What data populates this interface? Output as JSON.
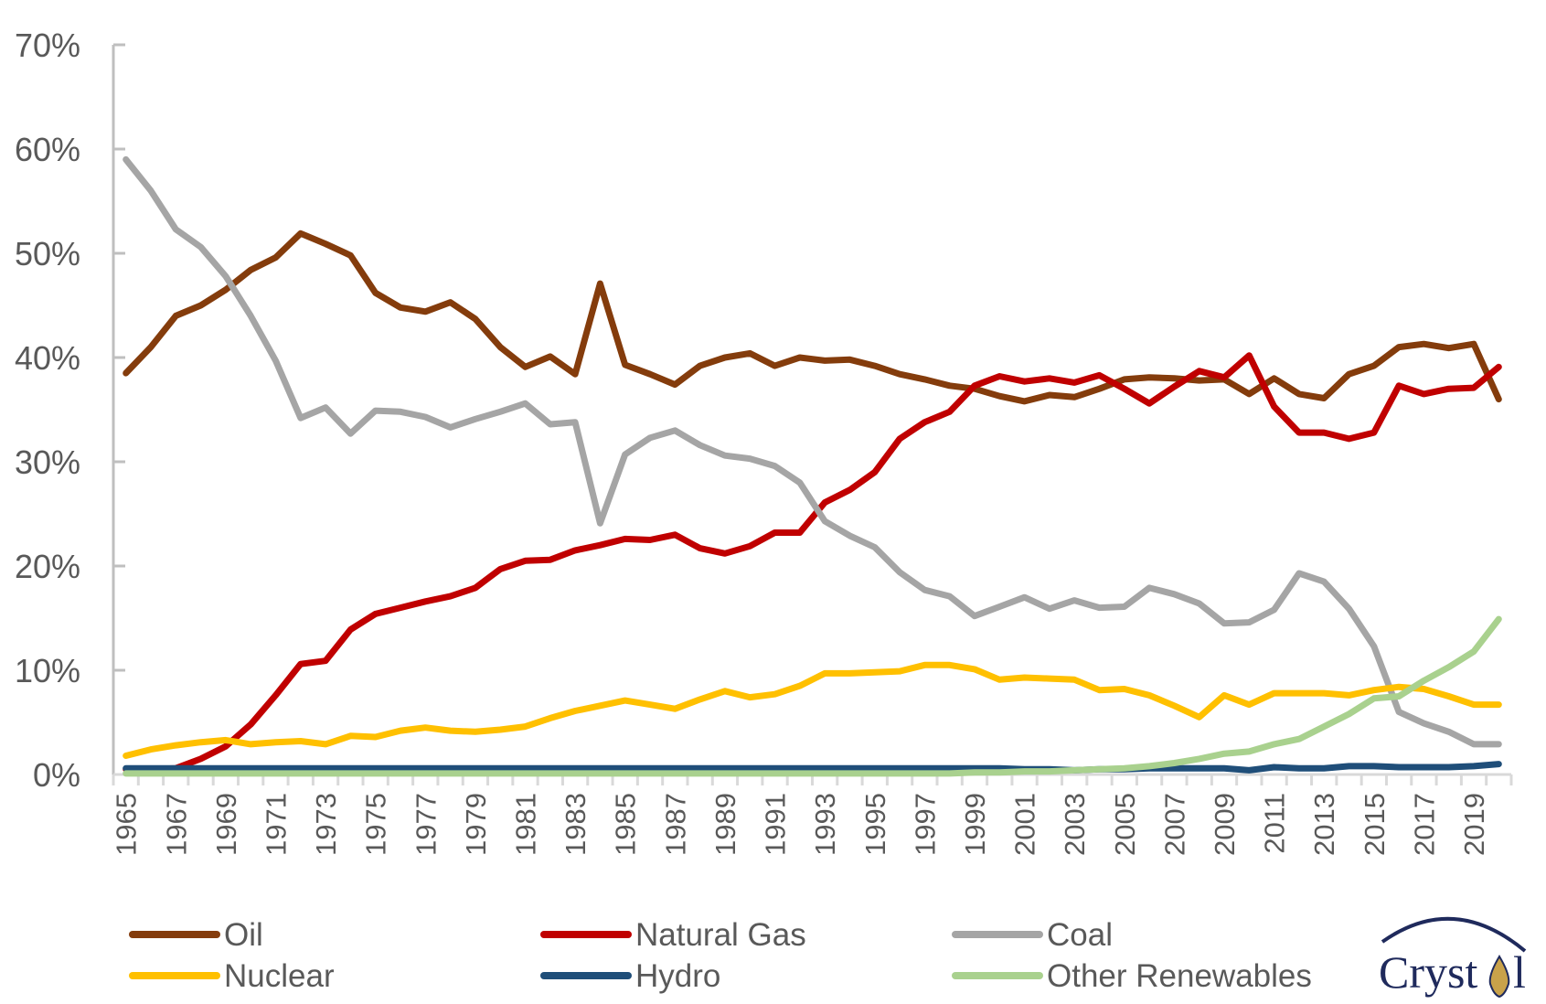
{
  "chart_data": {
    "type": "line",
    "title": "",
    "xlabel": "",
    "ylabel": "",
    "ylim": [
      0,
      70
    ],
    "yticks": [
      "0%",
      "10%",
      "20%",
      "30%",
      "40%",
      "50%",
      "60%",
      "70%"
    ],
    "ytick_values": [
      0,
      10,
      20,
      30,
      40,
      50,
      60,
      70
    ],
    "grid": false,
    "legend_position": "bottom",
    "x": [
      1965,
      1966,
      1967,
      1968,
      1969,
      1970,
      1971,
      1972,
      1973,
      1974,
      1975,
      1976,
      1977,
      1978,
      1979,
      1980,
      1981,
      1982,
      1983,
      1984,
      1985,
      1986,
      1987,
      1988,
      1989,
      1990,
      1991,
      1992,
      1993,
      1994,
      1995,
      1996,
      1997,
      1998,
      1999,
      2000,
      2001,
      2002,
      2003,
      2004,
      2005,
      2006,
      2007,
      2008,
      2009,
      2010,
      2011,
      2012,
      2013,
      2014,
      2015,
      2016,
      2017,
      2018,
      2019,
      2020
    ],
    "xtick_labels": [
      "1965",
      "1967",
      "1969",
      "1971",
      "1973",
      "1975",
      "1977",
      "1979",
      "1981",
      "1983",
      "1985",
      "1987",
      "1989",
      "1991",
      "1993",
      "1995",
      "1997",
      "1999",
      "2001",
      "2003",
      "2005",
      "2007",
      "2009",
      "2011",
      "2013",
      "2015",
      "2017",
      "2019"
    ],
    "series": [
      {
        "name": "Oil",
        "color": "#843c0c",
        "values": [
          38.5,
          41,
          44,
          45,
          46.5,
          48.4,
          49.6,
          51.9,
          50.9,
          49.8,
          46.2,
          44.8,
          44.4,
          45.3,
          43.7,
          41,
          39.1,
          40.1,
          38.4,
          47.1,
          39.3,
          38.4,
          37.4,
          39.2,
          40,
          40.4,
          39.2,
          40,
          39.7,
          39.8,
          39.2,
          38.4,
          37.9,
          37.3,
          37,
          36.3,
          35.8,
          36.4,
          36.2,
          37,
          37.9,
          38.1,
          38,
          37.8,
          37.9,
          36.5,
          38,
          36.5,
          36.1,
          38.4,
          39.2,
          41,
          41.3,
          40.9,
          41.3,
          36
        ]
      },
      {
        "name": "Natural Gas",
        "color": "#c00000",
        "values": [
          0.5,
          0.5,
          0.6,
          1.5,
          2.7,
          4.8,
          7.6,
          10.6,
          10.9,
          13.9,
          15.4,
          16,
          16.6,
          17.1,
          17.9,
          19.7,
          20.5,
          20.6,
          21.5,
          22,
          22.6,
          22.5,
          23,
          21.7,
          21.2,
          21.9,
          23.2,
          23.2,
          26.1,
          27.3,
          29,
          32.2,
          33.8,
          34.8,
          37.3,
          38.2,
          37.7,
          38,
          37.6,
          38.3,
          37,
          35.6,
          37.2,
          38.7,
          38.1,
          40.2,
          35.3,
          32.8,
          32.8,
          32.2,
          32.8,
          37.3,
          36.5,
          37,
          37.1,
          39.1
        ]
      },
      {
        "name": "Coal",
        "color": "#a5a5a5",
        "values": [
          59,
          56,
          52.3,
          50.6,
          47.8,
          44,
          39.7,
          34.2,
          35.2,
          32.7,
          34.9,
          34.8,
          34.3,
          33.3,
          34.1,
          34.8,
          35.6,
          33.6,
          33.8,
          24.1,
          30.7,
          32.3,
          33,
          31.6,
          30.6,
          30.3,
          29.6,
          28,
          24.3,
          22.9,
          21.8,
          19.4,
          17.7,
          17.1,
          15.2,
          16.1,
          17,
          15.9,
          16.7,
          16,
          16.1,
          17.9,
          17.3,
          16.4,
          14.5,
          14.6,
          15.8,
          19.3,
          18.5,
          15.9,
          12.3,
          6,
          4.9,
          4.1,
          2.9,
          2.9
        ]
      },
      {
        "name": "Nuclear",
        "color": "#ffc000",
        "values": [
          1.8,
          2.4,
          2.8,
          3.1,
          3.3,
          2.9,
          3.1,
          3.2,
          2.9,
          3.7,
          3.6,
          4.2,
          4.5,
          4.2,
          4.1,
          4.3,
          4.6,
          5.4,
          6.1,
          6.6,
          7.1,
          6.7,
          6.3,
          7.2,
          8,
          7.4,
          7.7,
          8.5,
          9.7,
          9.7,
          9.8,
          9.9,
          10.5,
          10.5,
          10.1,
          9.1,
          9.3,
          9.2,
          9.1,
          8.1,
          8.2,
          7.6,
          6.6,
          5.5,
          7.6,
          6.7,
          7.8,
          7.8,
          7.8,
          7.6,
          8.1,
          8.4,
          8.2,
          7.5,
          6.7,
          6.7
        ]
      },
      {
        "name": "Hydro",
        "color": "#1f4e79",
        "values": [
          0.6,
          0.6,
          0.6,
          0.6,
          0.6,
          0.6,
          0.6,
          0.6,
          0.6,
          0.6,
          0.6,
          0.6,
          0.6,
          0.6,
          0.6,
          0.6,
          0.6,
          0.6,
          0.6,
          0.6,
          0.6,
          0.6,
          0.6,
          0.6,
          0.6,
          0.6,
          0.6,
          0.6,
          0.6,
          0.6,
          0.6,
          0.6,
          0.6,
          0.6,
          0.6,
          0.6,
          0.5,
          0.5,
          0.4,
          0.5,
          0.5,
          0.6,
          0.6,
          0.6,
          0.6,
          0.4,
          0.7,
          0.6,
          0.6,
          0.8,
          0.8,
          0.7,
          0.7,
          0.7,
          0.8,
          1.0
        ]
      },
      {
        "name": "Other Renewables",
        "color": "#a9d18e",
        "values": [
          0.1,
          0.1,
          0.1,
          0.1,
          0.1,
          0.1,
          0.1,
          0.1,
          0.1,
          0.1,
          0.1,
          0.1,
          0.1,
          0.1,
          0.1,
          0.1,
          0.1,
          0.1,
          0.1,
          0.1,
          0.1,
          0.1,
          0.1,
          0.1,
          0.1,
          0.1,
          0.1,
          0.1,
          0.1,
          0.1,
          0.1,
          0.1,
          0.1,
          0.1,
          0.2,
          0.2,
          0.3,
          0.3,
          0.4,
          0.5,
          0.6,
          0.8,
          1.1,
          1.5,
          2,
          2.2,
          2.9,
          3.4,
          4.6,
          5.8,
          7.3,
          7.5,
          9,
          10.3,
          11.8,
          14.9
        ]
      }
    ]
  },
  "legend": {
    "items": [
      {
        "label": "Oil",
        "color": "#843c0c"
      },
      {
        "label": "Natural Gas",
        "color": "#c00000"
      },
      {
        "label": "Coal",
        "color": "#a5a5a5"
      },
      {
        "label": "Nuclear",
        "color": "#ffc000"
      },
      {
        "label": "Hydro",
        "color": "#1f4e79"
      },
      {
        "label": "Other Renewables",
        "color": "#a9d18e"
      }
    ]
  },
  "logo": {
    "text_left": "Cryst",
    "text_right": "l",
    "colors": {
      "text": "#1f2a5c",
      "drop": "#c9a24a"
    }
  },
  "colors": {
    "axis": "#bfbfbf",
    "tick_text": "#595959"
  }
}
